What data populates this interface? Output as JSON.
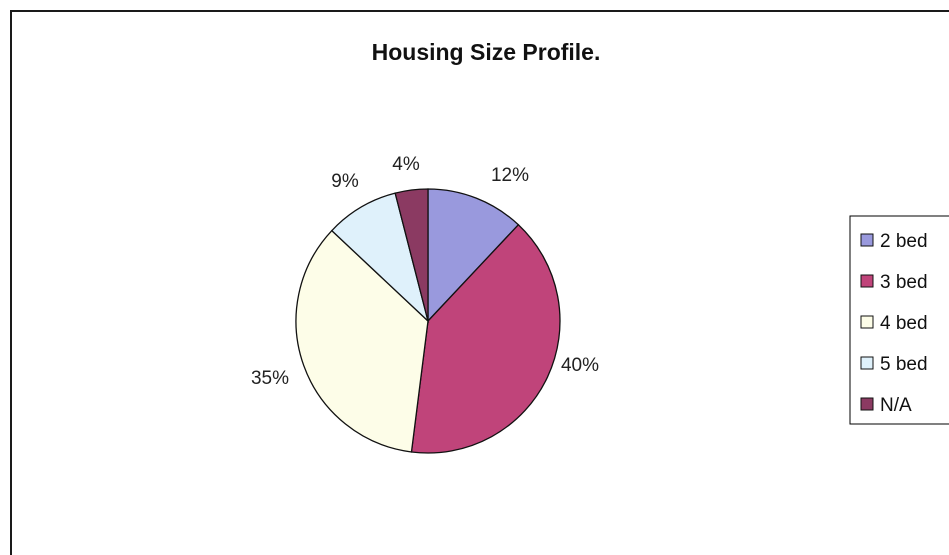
{
  "chart_data": {
    "type": "pie",
    "title": "Housing Size Profile.",
    "slices": [
      {
        "label": "2 bed",
        "value": 12,
        "display": "12%",
        "color": "#9999dd"
      },
      {
        "label": "3 bed",
        "value": 40,
        "display": "40%",
        "color": "#c0447a"
      },
      {
        "label": "4 bed",
        "value": 35,
        "display": "35%",
        "color": "#fdfde8"
      },
      {
        "label": "5 bed",
        "value": 9,
        "display": "9%",
        "color": "#dff1fb"
      },
      {
        "label": "N/A",
        "value": 4,
        "display": "4%",
        "color": "#8b3a62"
      }
    ],
    "legend_position": "right"
  }
}
